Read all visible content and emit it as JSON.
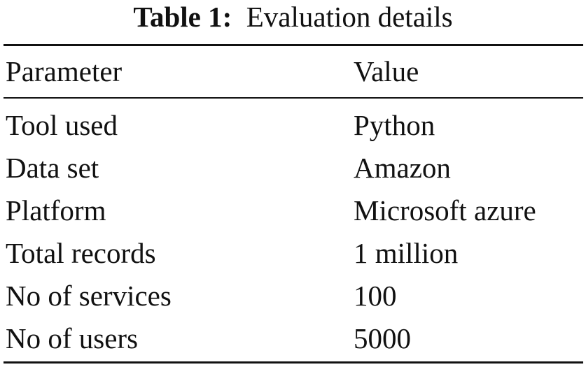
{
  "caption": {
    "label": "Table 1:",
    "title": "Evaluation details"
  },
  "table": {
    "headers": [
      "Parameter",
      "Value"
    ],
    "rows": [
      [
        "Tool used",
        "Python"
      ],
      [
        "Data set",
        "Amazon"
      ],
      [
        "Platform",
        "Microsoft azure"
      ],
      [
        "Total records",
        "1 million"
      ],
      [
        "No of services",
        "100"
      ],
      [
        "No of users",
        "5000"
      ]
    ]
  }
}
